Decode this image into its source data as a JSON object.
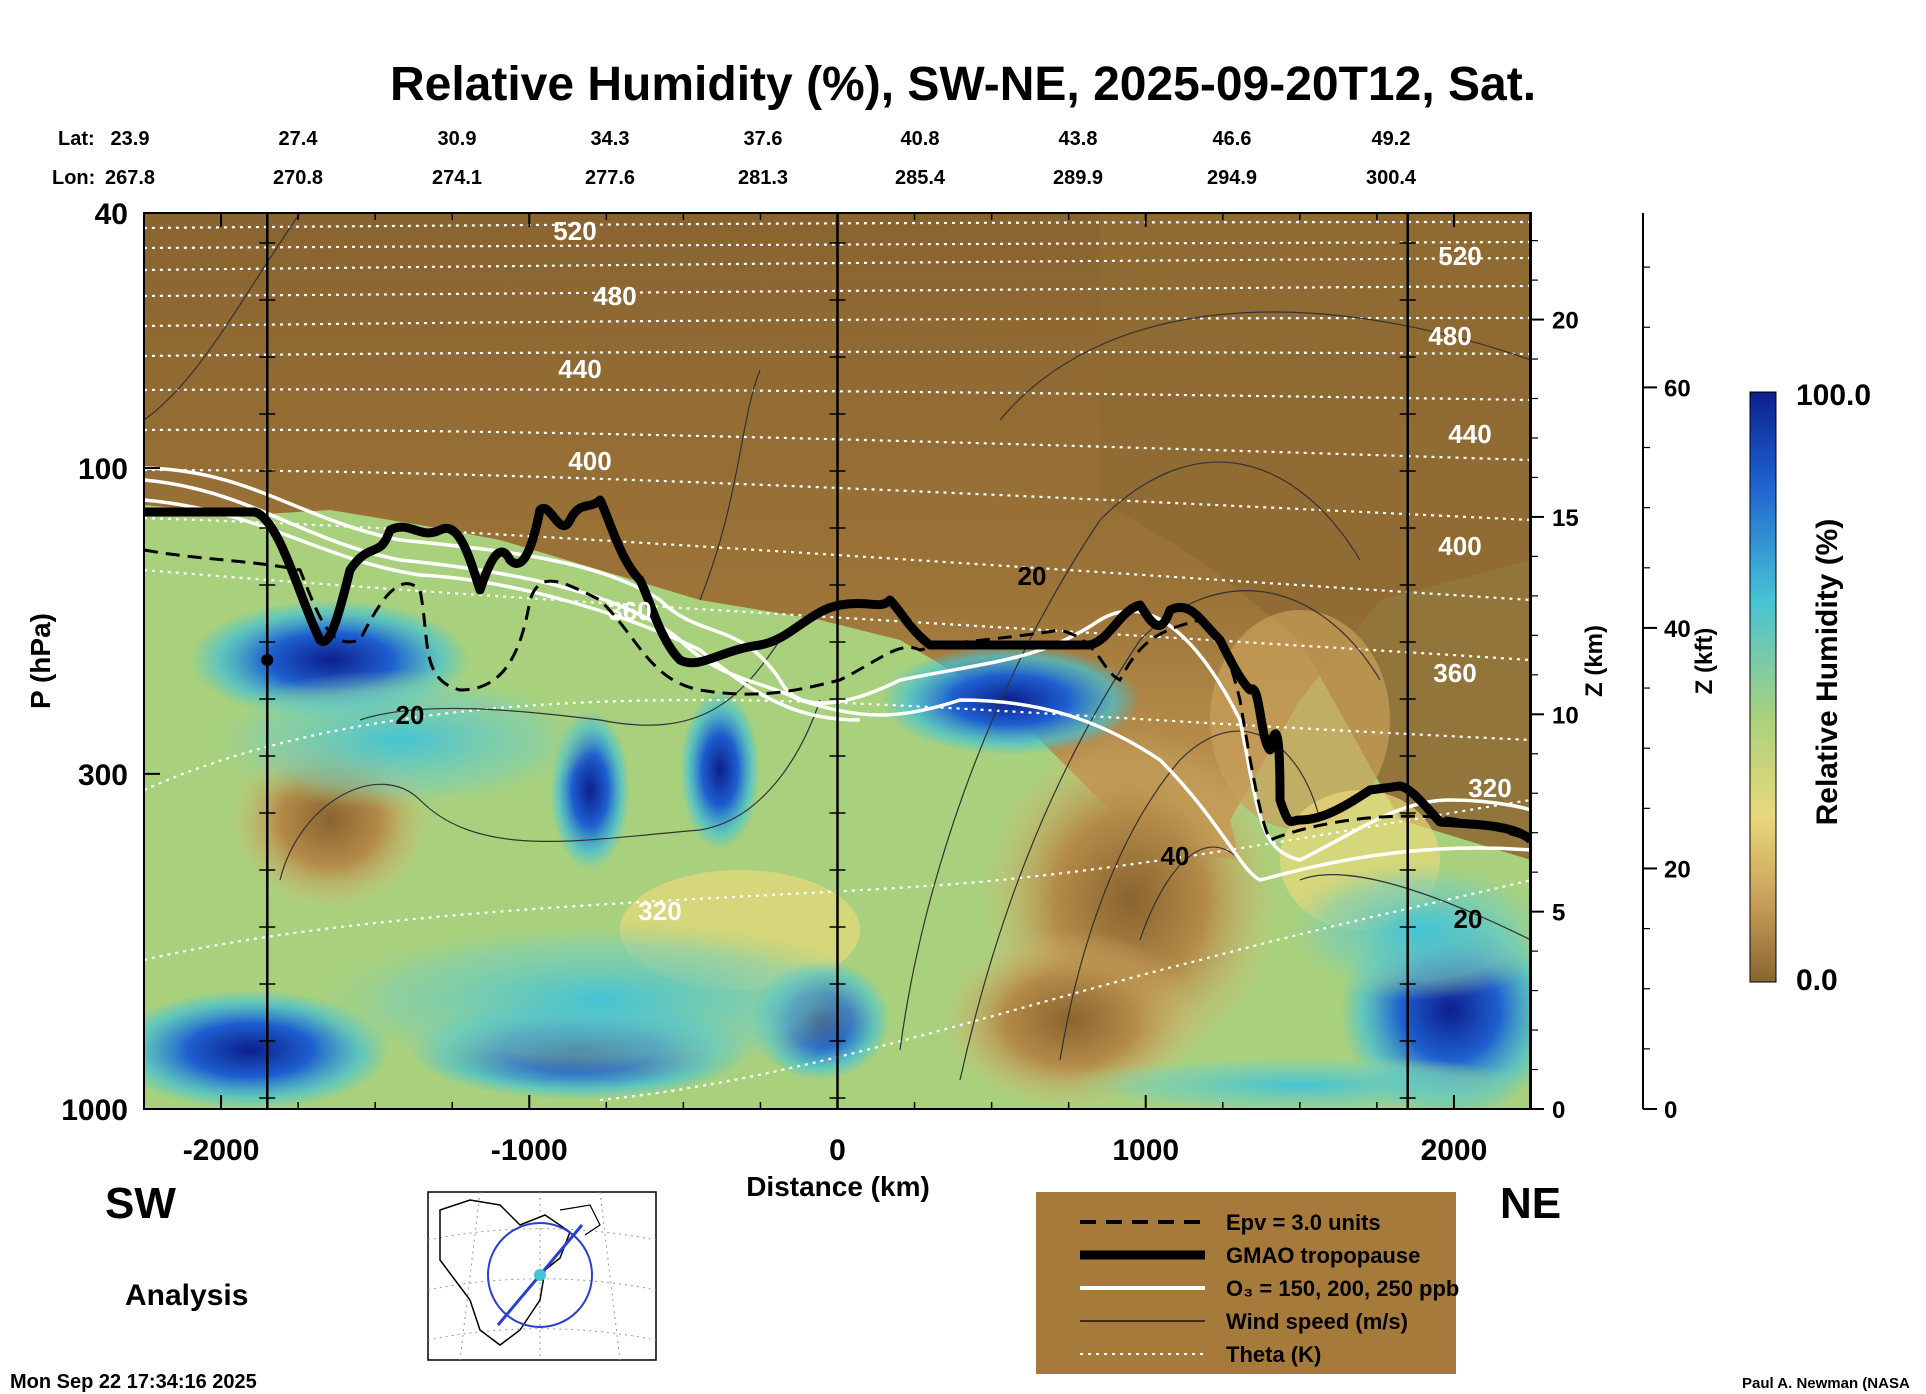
{
  "chart_data": {
    "type": "heatmap",
    "title": "Relative Humidity (%), SW-NE, 2025-09-20T12, Sat.",
    "xlabel": "Distance (km)",
    "ylabel": "P (hPa)",
    "y2label": "Z (km)",
    "y3label": "Z (kft)",
    "xlim": [
      -2250,
      2250
    ],
    "ylim": [
      1000,
      40
    ],
    "x_ticks": [
      "-2000",
      "-1000",
      "0",
      "1000",
      "2000"
    ],
    "x_tick_values": [
      -2000,
      -1000,
      0,
      1000,
      2000
    ],
    "p_ticks": [
      "40",
      "100",
      "300",
      "1000"
    ],
    "p_tick_values": [
      40,
      100,
      300,
      1000
    ],
    "zkm_ticks": [
      "0",
      "5",
      "10",
      "15",
      "20"
    ],
    "zkm_tick_values": [
      0,
      5,
      10,
      15,
      20
    ],
    "zkft_ticks": [
      "0",
      "20",
      "40",
      "60"
    ],
    "zkft_tick_values": [
      0,
      20,
      40,
      60
    ],
    "lat_label": "Lat:",
    "lon_label": "Lon:",
    "lat": [
      "23.9",
      "27.4",
      "30.9",
      "34.3",
      "37.6",
      "40.8",
      "43.8",
      "46.6",
      "49.2"
    ],
    "lon": [
      "267.8",
      "270.8",
      "274.1",
      "277.6",
      "281.3",
      "285.4",
      "289.9",
      "294.9",
      "300.4"
    ],
    "vertical_lines_km": [
      -1850,
      0,
      1850
    ],
    "theta_labels": [
      "520",
      "480",
      "440",
      "400",
      "360",
      "320",
      "520",
      "480",
      "440",
      "400",
      "360",
      "320"
    ],
    "wind_labels": [
      "20",
      "20",
      "40",
      "20"
    ],
    "colorbar": {
      "label": "Relative Humidity (%)",
      "max": "100.0",
      "min": "0.0",
      "vmin": 0,
      "vmax": 100
    },
    "legend": [
      {
        "label": "Epv = 3.0 units",
        "style": "dashed"
      },
      {
        "label": "GMAO tropopause",
        "style": "thick"
      },
      {
        "label": "O₃ = 150, 200, 250 ppb",
        "style": "white"
      },
      {
        "label": "Wind speed (m/s)",
        "style": "thin"
      },
      {
        "label": "Theta (K)",
        "style": "dotted"
      }
    ],
    "left_end": "SW",
    "right_end": "NE",
    "mode": "Analysis",
    "timestamp": "Mon Sep 22 17:34:16 2025",
    "credit": "Paul A. Newman (NASA"
  },
  "colors": {
    "dry": "#8a6430",
    "tan": "#c9a05a",
    "yellow": "#e9d87a",
    "green": "#a9d17d",
    "cyan": "#44c3d5",
    "blue": "#1e5fd0",
    "navy": "#0d1f8c",
    "legend_bg": "#a57a3a"
  }
}
